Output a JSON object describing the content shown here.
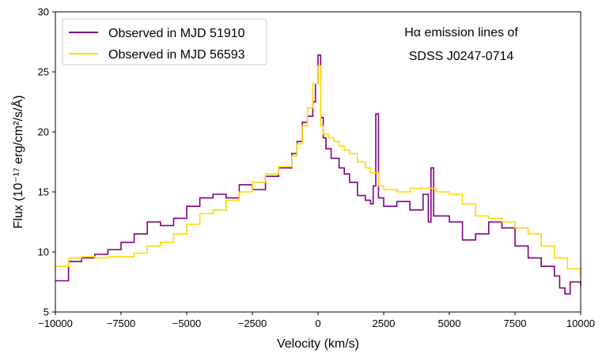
{
  "chart_data": {
    "type": "line",
    "title": "",
    "xlabel": "Velocity (km/s)",
    "ylabel": "Flux (10⁻¹⁷ erg/cm²/s/Å)",
    "xlim": [
      -10000,
      10000
    ],
    "ylim": [
      5,
      30
    ],
    "xticks": [
      -10000,
      -7500,
      -5000,
      -2500,
      0,
      2500,
      5000,
      7500,
      10000
    ],
    "xtick_labels": [
      "−10000",
      "−7500",
      "−5000",
      "−2500",
      "0",
      "2500",
      "5000",
      "7500",
      "10000"
    ],
    "yticks": [
      5,
      10,
      15,
      20,
      25,
      30
    ],
    "ytick_labels": [
      "5",
      "10",
      "15",
      "20",
      "25",
      "30"
    ],
    "grid": false,
    "legend_position": "top-left",
    "annotation": [
      "Hα emission lines of",
      "SDSS J0247-0714"
    ],
    "series": [
      {
        "name": "Observed in MJD 51910",
        "color": "#800080",
        "x": [
          -10000,
          -9500,
          -9000,
          -8500,
          -8000,
          -7500,
          -7000,
          -6500,
          -6000,
          -5500,
          -5000,
          -4500,
          -4000,
          -3500,
          -3000,
          -2500,
          -2000,
          -1500,
          -1000,
          -800,
          -600,
          -400,
          -200,
          -100,
          0,
          100,
          200,
          300,
          500,
          800,
          1000,
          1200,
          1500,
          1800,
          2000,
          2100,
          2200,
          2300,
          2500,
          2700,
          3000,
          3500,
          4000,
          4200,
          4300,
          4400,
          4500,
          5000,
          5500,
          6000,
          6500,
          7000,
          7500,
          8000,
          8500,
          9000,
          9200,
          9400,
          9600,
          10000
        ],
        "values": [
          7.6,
          9.2,
          9.5,
          9.8,
          10.2,
          10.8,
          11.5,
          12.5,
          12.2,
          12.8,
          13.8,
          14.5,
          14.8,
          14.5,
          15.6,
          15.2,
          16.3,
          17.0,
          18.2,
          19.2,
          20.8,
          21.3,
          22.5,
          24.0,
          26.4,
          21.2,
          19.5,
          18.6,
          17.8,
          17.0,
          16.5,
          15.8,
          14.7,
          14.3,
          14.0,
          15.5,
          21.5,
          14.5,
          13.8,
          13.8,
          14.2,
          13.5,
          14.8,
          12.5,
          17.0,
          13.0,
          13.0,
          12.5,
          11.0,
          11.5,
          12.5,
          12.0,
          10.5,
          9.5,
          8.8,
          8.0,
          7.0,
          6.5,
          7.5,
          7.2
        ]
      },
      {
        "name": "Observed in MJD 56593",
        "color": "#FFD700",
        "x": [
          -10000,
          -9500,
          -9000,
          -8500,
          -8000,
          -7500,
          -7000,
          -6500,
          -6000,
          -5500,
          -5000,
          -4500,
          -4000,
          -3500,
          -3000,
          -2500,
          -2000,
          -1500,
          -1000,
          -800,
          -600,
          -400,
          -200,
          0,
          100,
          200,
          400,
          600,
          800,
          1000,
          1200,
          1500,
          1800,
          2000,
          2300,
          2500,
          3000,
          3500,
          4000,
          4500,
          5000,
          5500,
          6000,
          6500,
          7000,
          7500,
          8000,
          8500,
          9000,
          9500,
          10000
        ],
        "values": [
          8.8,
          9.5,
          9.6,
          9.5,
          9.6,
          9.6,
          9.9,
          10.5,
          10.8,
          11.5,
          12.3,
          13.2,
          13.5,
          14.3,
          15.0,
          15.8,
          16.5,
          17.1,
          18.0,
          19.0,
          20.5,
          22.0,
          24.0,
          25.5,
          20.5,
          19.8,
          19.5,
          19.2,
          18.8,
          18.5,
          18.2,
          17.5,
          17.0,
          16.6,
          15.5,
          15.2,
          15.0,
          15.3,
          15.3,
          15.0,
          14.8,
          14.0,
          13.0,
          12.8,
          12.5,
          12.0,
          11.5,
          10.5,
          9.5,
          8.6,
          8.1
        ]
      }
    ]
  }
}
